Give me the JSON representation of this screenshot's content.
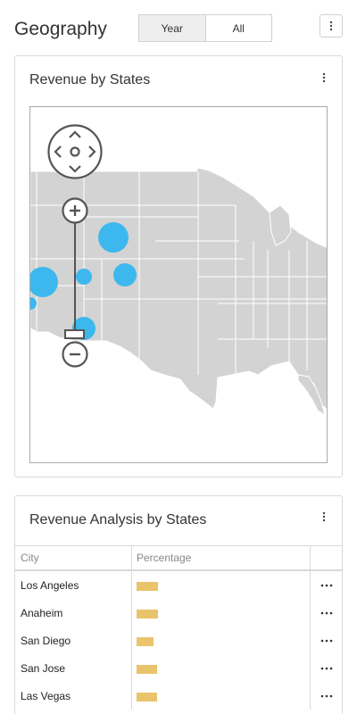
{
  "page": {
    "title": "Geography"
  },
  "period_toggle": {
    "options": [
      "Year",
      "All"
    ],
    "active": "Year"
  },
  "icons": {
    "menu": "more-vertical-icon",
    "row_menu": "more-horizontal-icon",
    "pan": "pan-control-icon",
    "zoom_in": "zoom-in-icon",
    "zoom_out": "zoom-out-icon"
  },
  "colors": {
    "bubble": "#3db8ee",
    "bar": "#e9c46a",
    "land": "#d3d3d3"
  },
  "map_card": {
    "title": "Revenue by States"
  },
  "table_card": {
    "title": "Revenue Analysis by States",
    "columns": [
      "City",
      "Percentage",
      ""
    ],
    "rows": [
      {
        "city": "Los Angeles",
        "pct": 0.48
      },
      {
        "city": "Anaheim",
        "pct": 0.47
      },
      {
        "city": "San Diego",
        "pct": 0.37
      },
      {
        "city": "San Jose",
        "pct": 0.45
      },
      {
        "city": "Las Vegas",
        "pct": 0.45
      }
    ]
  }
}
